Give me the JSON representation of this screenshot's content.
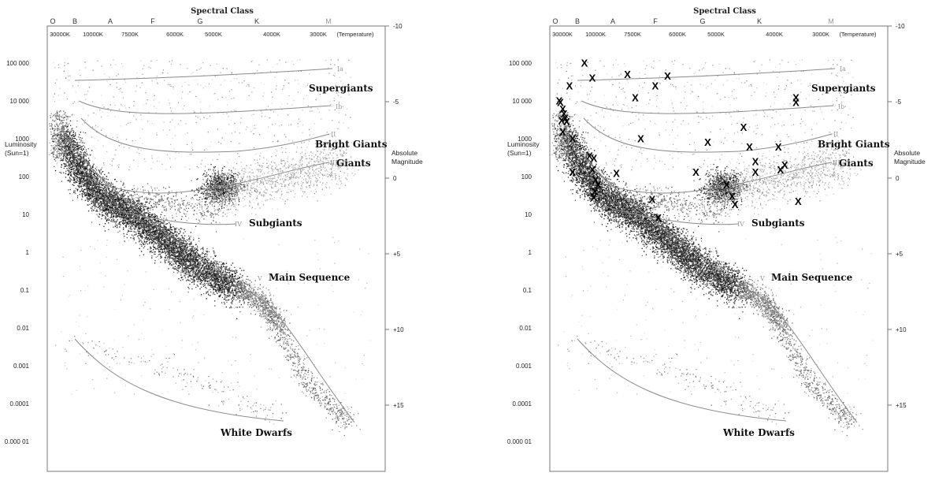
{
  "chart_data": [
    {
      "type": "scatter",
      "title": "Spectral Class",
      "spectral_classes": [
        "O",
        "B",
        "A",
        "F",
        "G",
        "K",
        "M"
      ],
      "temperature_ticks": [
        "30000K",
        "10000K",
        "7500K",
        "6000K",
        "5000K",
        "4000K",
        "3000K",
        "(Temperature)"
      ],
      "ylabel": "Luminosity\n(Sun=1)",
      "y_right_label": "Absolute\nMagnitude",
      "y_ticks": [
        "100 000",
        "10 000",
        "1000",
        "100",
        "10",
        "1",
        "0.1",
        "0.01",
        "0.001",
        "0.0001",
        "0.000 01"
      ],
      "y_right_ticks": [
        "-10",
        "-5",
        "0",
        "+5",
        "+10",
        "+15"
      ],
      "y_scale": "log",
      "regions": [
        "Supergiants",
        "Bright Giants",
        "Giants",
        "Subgiants",
        "Main Sequence",
        "White Dwarfs"
      ],
      "luminosity_classes": [
        "Ia",
        "Ib",
        "II",
        "III",
        "IV",
        "V"
      ],
      "markers": false
    },
    {
      "type": "scatter",
      "title": "Spectral Class",
      "spectral_classes": [
        "O",
        "B",
        "A",
        "F",
        "G",
        "K",
        "M"
      ],
      "temperature_ticks": [
        "30000K",
        "10000K",
        "7500K",
        "6000K",
        "5000K",
        "4000K",
        "3000K",
        "(Temperature)"
      ],
      "ylabel": "Luminosity\n(Sun=1)",
      "y_right_label": "Absolute\nMagnitude",
      "y_ticks": [
        "100 000",
        "10 000",
        "1000",
        "100",
        "10",
        "1",
        "0.1",
        "0.01",
        "0.001",
        "0.0001",
        "0.000 01"
      ],
      "y_right_ticks": [
        "-10",
        "-5",
        "0",
        "+5",
        "+10",
        "+15"
      ],
      "y_scale": "log",
      "regions": [
        "Supergiants",
        "Bright Giants",
        "Giants",
        "Subgiants",
        "Main Sequence",
        "White Dwarfs"
      ],
      "luminosity_classes": [
        "Ia",
        "Ib",
        "II",
        "III",
        "IV",
        "V"
      ],
      "markers": true,
      "marker_symbol": "X",
      "highlighted_stars": [
        {
          "temperature_K": 30000,
          "luminosity": 10000
        },
        {
          "temperature_K": 29000,
          "luminosity": 9000
        },
        {
          "temperature_K": 27000,
          "luminosity": 6000
        },
        {
          "temperature_K": 26000,
          "luminosity": 4500
        },
        {
          "temperature_K": 25000,
          "luminosity": 3500
        },
        {
          "temperature_K": 28000,
          "luminosity": 3000
        },
        {
          "temperature_K": 27000,
          "luminosity": 1500
        },
        {
          "temperature_K": 24000,
          "luminosity": 2800
        },
        {
          "temperature_K": 20000,
          "luminosity": 1000
        },
        {
          "temperature_K": 22000,
          "luminosity": 25000
        },
        {
          "temperature_K": 14000,
          "luminosity": 100000
        },
        {
          "temperature_K": 11000,
          "luminosity": 40000
        },
        {
          "temperature_K": 7800,
          "luminosity": 50000
        },
        {
          "temperature_K": 6700,
          "luminosity": 25000
        },
        {
          "temperature_K": 6300,
          "luminosity": 45000
        },
        {
          "temperature_K": 7400,
          "luminosity": 12000
        },
        {
          "temperature_K": 7200,
          "luminosity": 1000
        },
        {
          "temperature_K": 20000,
          "luminosity": 130
        },
        {
          "temperature_K": 12000,
          "luminosity": 350
        },
        {
          "temperature_K": 10500,
          "luminosity": 300
        },
        {
          "temperature_K": 11000,
          "luminosity": 150
        },
        {
          "temperature_K": 10000,
          "luminosity": 80
        },
        {
          "temperature_K": 10200,
          "luminosity": 40
        },
        {
          "temperature_K": 10500,
          "luminosity": 28
        },
        {
          "temperature_K": 9800,
          "luminosity": 60
        },
        {
          "temperature_K": 8500,
          "luminosity": 120
        },
        {
          "temperature_K": 6800,
          "luminosity": 25
        },
        {
          "temperature_K": 6600,
          "luminosity": 8
        },
        {
          "temperature_K": 5500,
          "luminosity": 130
        },
        {
          "temperature_K": 5200,
          "luminosity": 800
        },
        {
          "temperature_K": 4800,
          "luminosity": 60
        },
        {
          "temperature_K": 4700,
          "luminosity": 30
        },
        {
          "temperature_K": 4650,
          "luminosity": 18
        },
        {
          "temperature_K": 4500,
          "luminosity": 2000
        },
        {
          "temperature_K": 4400,
          "luminosity": 600
        },
        {
          "temperature_K": 4300,
          "luminosity": 250
        },
        {
          "temperature_K": 4300,
          "luminosity": 130
        },
        {
          "temperature_K": 3900,
          "luminosity": 600
        },
        {
          "temperature_K": 3850,
          "luminosity": 150
        },
        {
          "temperature_K": 3750,
          "luminosity": 200
        },
        {
          "temperature_K": 3500,
          "luminosity": 12000
        },
        {
          "temperature_K": 3500,
          "luminosity": 9000
        },
        {
          "temperature_K": 3450,
          "luminosity": 22
        }
      ]
    }
  ]
}
